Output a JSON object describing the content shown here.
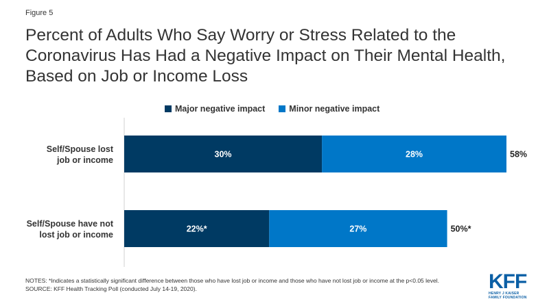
{
  "figure_label": "Figure 5",
  "title": "Percent of Adults Who Say Worry or Stress Related to the Coronavirus Has Had a Negative Impact on Their Mental Health, Based on Job or Income Loss",
  "colors": {
    "major": "#003a63",
    "minor": "#0077c8",
    "axis": "#d0d0d0"
  },
  "chart_data": {
    "type": "bar",
    "orientation": "horizontal",
    "stacked": true,
    "categories": [
      "Self/Spouse lost job or income",
      "Self/Spouse have not lost job or income"
    ],
    "series": [
      {
        "name": "Major negative impact",
        "values": [
          30,
          22
        ],
        "labels": [
          "30%",
          "22%*"
        ]
      },
      {
        "name": "Minor negative impact",
        "values": [
          28,
          27
        ],
        "labels": [
          "28%",
          "27%"
        ]
      }
    ],
    "totals": [
      58,
      50
    ],
    "total_labels": [
      "58%",
      "50%*"
    ],
    "xlim": [
      0,
      58
    ],
    "legend_position": "top",
    "grid": false
  },
  "notes": {
    "line1": "NOTES: *Indicates a statistically significant difference between those who have lost job or income and those who have not lost job or income at the p<0.05 level.",
    "line2": "SOURCE: KFF Health Tracking Poll (conducted July 14-19, 2020)."
  },
  "logo": {
    "mark": "KFF",
    "line1": "HENRY J KAISER",
    "line2": "FAMILY FOUNDATION"
  }
}
